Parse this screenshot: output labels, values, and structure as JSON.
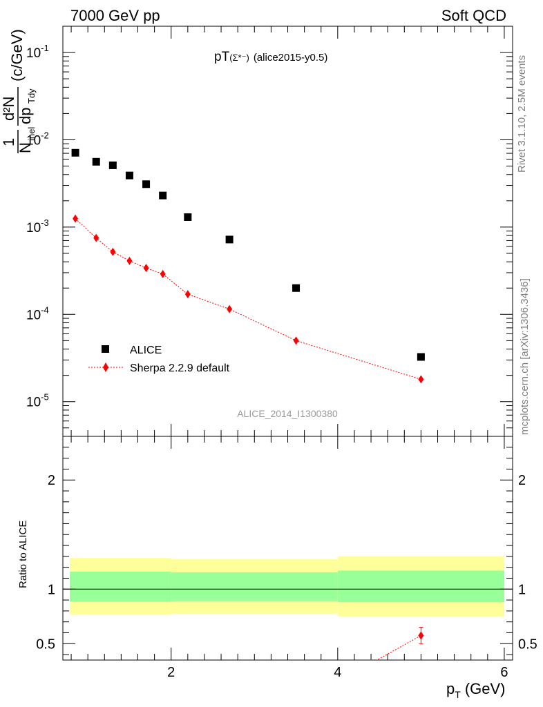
{
  "header": {
    "left": "7000 GeV pp",
    "right": "Soft QCD"
  },
  "sidebar": {
    "rivet": "Rivet 3.1.10,  2.5M events",
    "mcplots": "mcplots.cern.ch [arXiv:1306.3436]"
  },
  "main": {
    "title_prefix": "pT",
    "title_particle": "(Σ*⁻)",
    "title_suffix": "(alice2015-y0.5)",
    "ylabel_one": "1",
    "ylabel_n": "N",
    "ylabel_n_sub": "inel",
    "ylabel_num": "d²N",
    "ylabel_den": "dp",
    "ylabel_den_sub": "Tdy",
    "ylabel_unit": "(c/GeV)",
    "analysis_id": "ALICE_2014_I1300380",
    "legend_data": "ALICE",
    "legend_mc": "Sherpa 2.2.9 default"
  },
  "ratio": {
    "ylabel": "Ratio to ALICE"
  },
  "xaxis": {
    "label": "p",
    "label_sub": "T",
    "unit": "(GeV)"
  },
  "colors": {
    "data": "#000000",
    "mc": "#ff0000",
    "band_inner": "#99ff99",
    "band_outer": "#ffff99"
  },
  "chart_data": [
    {
      "type": "scatter",
      "panel": "main",
      "scale": "log",
      "xlim": [
        0.7,
        6.1
      ],
      "ylim": [
        4e-06,
        0.2
      ],
      "yticks": [
        {
          "value": 1e-05,
          "mant": "10",
          "exp": "-5"
        },
        {
          "value": 0.0001,
          "mant": "10",
          "exp": "-4"
        },
        {
          "value": 0.001,
          "mant": "10",
          "exp": "-3"
        },
        {
          "value": 0.01,
          "mant": "10",
          "exp": "-2"
        },
        {
          "value": 0.1,
          "mant": "10",
          "exp": "-1"
        }
      ],
      "series": [
        {
          "name": "ALICE",
          "marker": "square",
          "x": [
            0.85,
            1.1,
            1.3,
            1.5,
            1.7,
            1.9,
            2.2,
            2.7,
            3.5,
            5.0
          ],
          "y": [
            0.0071,
            0.0056,
            0.0051,
            0.0039,
            0.0031,
            0.0023,
            0.0013,
            0.00072,
            0.0002,
            3.25e-05
          ]
        },
        {
          "name": "Sherpa 2.2.9 default",
          "marker": "diamond",
          "line": "dotted",
          "x": [
            0.85,
            1.1,
            1.3,
            1.5,
            1.7,
            1.9,
            2.2,
            2.7,
            3.5,
            5.0
          ],
          "y": [
            0.00125,
            0.00075,
            0.00052,
            0.00041,
            0.00034,
            0.00029,
            0.00017,
            0.000115,
            5e-05,
            1.8e-05
          ]
        }
      ]
    },
    {
      "type": "line",
      "panel": "ratio",
      "xlim": [
        0.7,
        6.1
      ],
      "ylim": [
        0.35,
        2.4
      ],
      "xticks": [
        2,
        4,
        6
      ],
      "yticks": [
        0.5,
        1,
        2
      ],
      "bands": [
        {
          "x0": 0.7,
          "x1": 2.0,
          "inner": [
            0.885,
            1.16
          ],
          "outer": [
            0.765,
            1.285
          ]
        },
        {
          "x0": 2.0,
          "x1": 4.0,
          "inner": [
            0.89,
            1.155
          ],
          "outer": [
            0.775,
            1.275
          ]
        },
        {
          "x0": 4.0,
          "x1": 6.0,
          "inner": [
            0.88,
            1.17
          ],
          "outer": [
            0.75,
            1.3
          ]
        }
      ],
      "series": [
        {
          "name": "Sherpa 2.2.9 default",
          "x": [
            4.4,
            5.0
          ],
          "y": [
            0.32,
            0.575
          ],
          "yerr": [
            0,
            0.075
          ]
        }
      ]
    }
  ]
}
